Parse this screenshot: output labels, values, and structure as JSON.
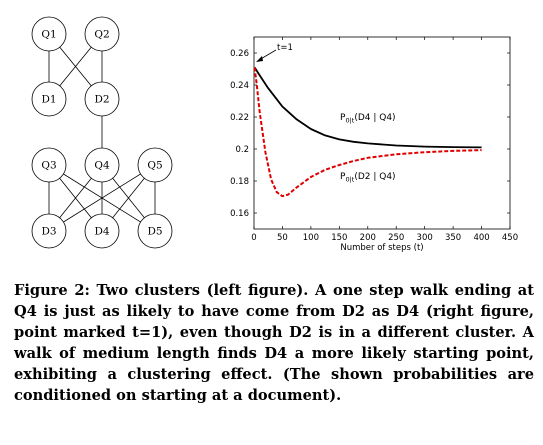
{
  "graph": {
    "nodes": [
      {
        "id": "Q1",
        "label": "Q1"
      },
      {
        "id": "Q2",
        "label": "Q2"
      },
      {
        "id": "D1",
        "label": "D1"
      },
      {
        "id": "D2",
        "label": "D2"
      },
      {
        "id": "Q3",
        "label": "Q3"
      },
      {
        "id": "Q4",
        "label": "Q4"
      },
      {
        "id": "Q5",
        "label": "Q5"
      },
      {
        "id": "D3",
        "label": "D3"
      },
      {
        "id": "D4",
        "label": "D4"
      },
      {
        "id": "D5",
        "label": "D5"
      }
    ],
    "edges": [
      [
        "Q1",
        "D1"
      ],
      [
        "Q1",
        "D2"
      ],
      [
        "Q2",
        "D1"
      ],
      [
        "Q2",
        "D2"
      ],
      [
        "D2",
        "Q4"
      ],
      [
        "Q3",
        "D3"
      ],
      [
        "Q3",
        "D4"
      ],
      [
        "Q3",
        "D5"
      ],
      [
        "Q4",
        "D3"
      ],
      [
        "Q4",
        "D4"
      ],
      [
        "Q4",
        "D5"
      ],
      [
        "Q5",
        "D3"
      ],
      [
        "Q5",
        "D4"
      ],
      [
        "Q5",
        "D5"
      ]
    ]
  },
  "chart_data": {
    "type": "line",
    "xlabel": "Number of steps (t)",
    "ylabel": "",
    "xlim": [
      0,
      450
    ],
    "ylim": [
      0.15,
      0.27
    ],
    "xticks": [
      "0",
      "50",
      "100",
      "150",
      "200",
      "250",
      "300",
      "350",
      "400",
      "450"
    ],
    "yticks": [
      "0.16",
      "0.18",
      "0.2",
      "0.22",
      "0.24",
      "0.26"
    ],
    "annotation": "t=1",
    "series": [
      {
        "name": "P0|t(D4 | Q4)",
        "label_main": "P",
        "label_sub": "0|t",
        "label_rest": "(D4 | Q4)",
        "color": "#000000",
        "style": "solid",
        "x": [
          1,
          10,
          25,
          50,
          75,
          100,
          125,
          150,
          175,
          200,
          250,
          300,
          350,
          400
        ],
        "y": [
          0.251,
          0.246,
          0.238,
          0.2265,
          0.2185,
          0.2125,
          0.2085,
          0.206,
          0.2045,
          0.2035,
          0.2022,
          0.2015,
          0.2012,
          0.201
        ]
      },
      {
        "name": "P0|t(D2 | Q4)",
        "label_main": "P",
        "label_sub": "0|t",
        "label_rest": "(D2 | Q4)",
        "color": "#e00000",
        "style": "dashed",
        "x": [
          1,
          5,
          10,
          20,
          30,
          40,
          50,
          60,
          75,
          100,
          125,
          150,
          175,
          200,
          250,
          300,
          350,
          400
        ],
        "y": [
          0.251,
          0.24,
          0.223,
          0.198,
          0.181,
          0.173,
          0.1705,
          0.1715,
          0.176,
          0.1825,
          0.187,
          0.19,
          0.1925,
          0.1945,
          0.1967,
          0.198,
          0.1988,
          0.1993
        ]
      }
    ]
  },
  "caption": {
    "text": "Figure 2: Two clusters (left figure). A one step walk ending at Q4 is just as likely to have come from D2 as D4 (right figure, point marked t=1), even though D2 is in a different cluster. A walk of medium length finds D4 a more likely starting point, exhibiting a clustering effect. (The shown probabilities are conditioned on starting at a document)."
  }
}
